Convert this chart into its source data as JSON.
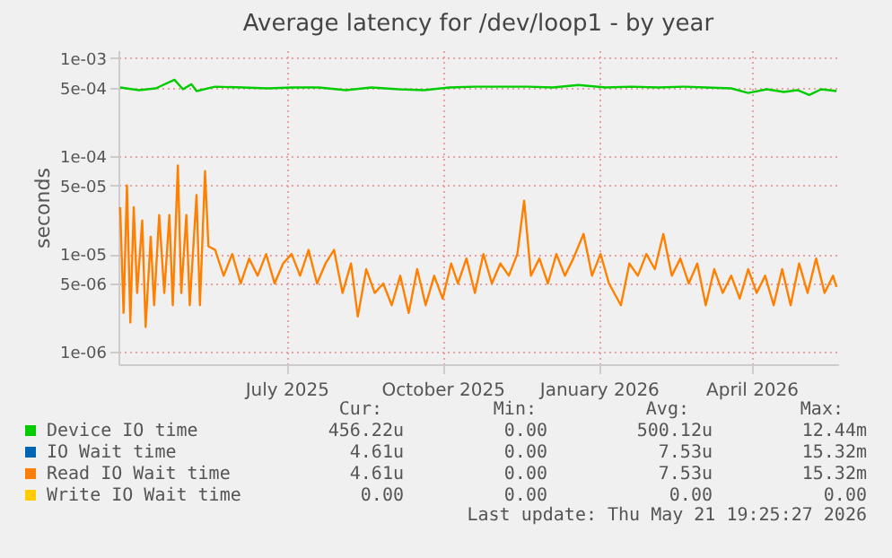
{
  "chart_data": {
    "type": "line",
    "title": "Average latency for /dev/loop1 - by year",
    "ylabel": "seconds",
    "log": "y",
    "grid": true,
    "legend": "bottom",
    "xlim": [
      "2025-03-24",
      "2026-05-22"
    ],
    "xticks": [
      {
        "value": "2025-07-01",
        "label": "July 2025"
      },
      {
        "value": "2025-10-01",
        "label": "October 2025"
      },
      {
        "value": "2026-01-01",
        "label": "January 2026"
      },
      {
        "value": "2026-04-01",
        "label": "April 2026"
      }
    ],
    "ylim": [
      7.5e-07,
      0.0012
    ],
    "yticks": [
      {
        "value": 1e-06,
        "label": "1e-06"
      },
      {
        "value": 5e-06,
        "label": "5e-06"
      },
      {
        "value": 1e-05,
        "label": "1e-05"
      },
      {
        "value": 5e-05,
        "label": "5e-05"
      },
      {
        "value": 0.0001,
        "label": "1e-04"
      },
      {
        "value": 0.0005,
        "label": "5e-04"
      },
      {
        "value": 0.001,
        "label": "1e-03"
      }
    ],
    "x": [
      "2025-03-25",
      "2025-03-27",
      "2025-03-29",
      "2025-03-31",
      "2025-04-02",
      "2025-04-04",
      "2025-04-07",
      "2025-04-09",
      "2025-04-12",
      "2025-04-14",
      "2025-04-17",
      "2025-04-20",
      "2025-04-23",
      "2025-04-25",
      "2025-04-28",
      "2025-04-30",
      "2025-05-03",
      "2025-05-05",
      "2025-05-09",
      "2025-05-11",
      "2025-05-14",
      "2025-05-16",
      "2025-05-20",
      "2025-05-25",
      "2025-05-30",
      "2025-06-04",
      "2025-06-09",
      "2025-06-14",
      "2025-06-19",
      "2025-06-24",
      "2025-06-29",
      "2025-07-04",
      "2025-07-09",
      "2025-07-14",
      "2025-07-19",
      "2025-07-24",
      "2025-07-29",
      "2025-08-03",
      "2025-08-08",
      "2025-08-12",
      "2025-08-17",
      "2025-08-22",
      "2025-08-27",
      "2025-09-01",
      "2025-09-06",
      "2025-09-11",
      "2025-09-16",
      "2025-09-21",
      "2025-09-26",
      "2025-10-01",
      "2025-10-06",
      "2025-10-10",
      "2025-10-15",
      "2025-10-20",
      "2025-10-25",
      "2025-10-30",
      "2025-11-04",
      "2025-11-09",
      "2025-11-14",
      "2025-11-18",
      "2025-11-22",
      "2025-11-27",
      "2025-12-02",
      "2025-12-07",
      "2025-12-12",
      "2025-12-17",
      "2025-12-23",
      "2025-12-28",
      "2026-01-02",
      "2026-01-07",
      "2026-01-14",
      "2026-01-19",
      "2026-01-24",
      "2026-01-29",
      "2026-02-03",
      "2026-02-08",
      "2026-02-13",
      "2026-02-18",
      "2026-02-23",
      "2026-02-28",
      "2026-03-05",
      "2026-03-10",
      "2026-03-15",
      "2026-03-20",
      "2026-03-25",
      "2026-03-30",
      "2026-04-04",
      "2026-04-09",
      "2026-04-14",
      "2026-04-19",
      "2026-04-24",
      "2026-04-29",
      "2026-05-04",
      "2026-05-09",
      "2026-05-14",
      "2026-05-19",
      "2026-05-21"
    ],
    "series": [
      {
        "name": "Device IO time",
        "color": "#00cc00",
        "x": [
          "2025-03-25",
          "2025-04-05",
          "2025-04-15",
          "2025-04-26",
          "2025-05-01",
          "2025-05-06",
          "2025-05-09",
          "2025-05-20",
          "2025-06-05",
          "2025-06-20",
          "2025-07-05",
          "2025-07-20",
          "2025-08-05",
          "2025-08-20",
          "2025-09-05",
          "2025-09-20",
          "2025-10-05",
          "2025-10-20",
          "2025-11-05",
          "2025-11-20",
          "2025-12-05",
          "2025-12-20",
          "2026-01-05",
          "2026-01-20",
          "2026-02-05",
          "2026-02-20",
          "2026-03-05",
          "2026-03-20",
          "2026-03-30",
          "2026-04-10",
          "2026-04-20",
          "2026-04-28",
          "2026-05-05",
          "2026-05-12",
          "2026-05-21"
        ],
        "values": [
          0.0005,
          0.00047,
          0.00049,
          0.0006,
          0.00048,
          0.00054,
          0.00046,
          0.00051,
          0.0005,
          0.00049,
          0.0005,
          0.0005,
          0.00047,
          0.0005,
          0.00048,
          0.00047,
          0.0005,
          0.00051,
          0.00051,
          0.00051,
          0.0005,
          0.00053,
          0.0005,
          0.00051,
          0.0005,
          0.00051,
          0.0005,
          0.00049,
          0.00044,
          0.00048,
          0.00045,
          0.00047,
          0.00042,
          0.00048,
          0.00046
        ]
      },
      {
        "name": "IO Wait time",
        "color": "#0066b3",
        "values": [
          null,
          null,
          null,
          null,
          null,
          null,
          null,
          null,
          null,
          null,
          null,
          null,
          null,
          null,
          null,
          null,
          null,
          null,
          null,
          null,
          null,
          null,
          null,
          null,
          null,
          null,
          null,
          null,
          null,
          null,
          null,
          null,
          null,
          null,
          null,
          null,
          null,
          null,
          null,
          null,
          null,
          null,
          null,
          null,
          null,
          null,
          null,
          null,
          null,
          null,
          null,
          null,
          null,
          null,
          null,
          null,
          null,
          null,
          null,
          null,
          null,
          null,
          null,
          null,
          null,
          null,
          null,
          null,
          null,
          null,
          null,
          null,
          null,
          null,
          null,
          null,
          null,
          null,
          null,
          null,
          null,
          null,
          null,
          null,
          null,
          null,
          null,
          null,
          null,
          null,
          null,
          null,
          null,
          null,
          null,
          null,
          null
        ]
      },
      {
        "name": "Read IO Wait time",
        "color": "#ff8000",
        "values": [
          3e-05,
          2.5e-06,
          5e-05,
          2e-06,
          3e-05,
          4e-06,
          2.2e-05,
          1.8e-06,
          1.5e-05,
          3e-06,
          2.5e-05,
          4e-06,
          2.5e-05,
          3e-06,
          8e-05,
          4e-06,
          2.5e-05,
          3e-06,
          4e-05,
          3e-06,
          7e-05,
          1.2e-05,
          1.1e-05,
          6e-06,
          1e-05,
          5e-06,
          9e-06,
          6e-06,
          1e-05,
          5e-06,
          8e-06,
          1e-05,
          6e-06,
          1.1e-05,
          5e-06,
          8e-06,
          1.1e-05,
          4e-06,
          8e-06,
          2.3e-06,
          7e-06,
          4e-06,
          5e-06,
          3e-06,
          6e-06,
          2.5e-06,
          7e-06,
          3e-06,
          6e-06,
          3.5e-06,
          8e-06,
          5e-06,
          9e-06,
          4e-06,
          1e-05,
          5e-06,
          8e-06,
          6e-06,
          1e-05,
          3.5e-05,
          6e-06,
          9e-06,
          5e-06,
          1e-05,
          6e-06,
          9e-06,
          1.6e-05,
          6e-06,
          1e-05,
          5e-06,
          3e-06,
          8e-06,
          6e-06,
          1e-05,
          7e-06,
          1.6e-05,
          6e-06,
          9e-06,
          5e-06,
          8e-06,
          3e-06,
          7e-06,
          4e-06,
          6e-06,
          3.5e-06,
          7e-06,
          4e-06,
          6e-06,
          3e-06,
          7e-06,
          3e-06,
          8e-06,
          4e-06,
          9e-06,
          4e-06,
          6e-06,
          4.61e-06
        ]
      },
      {
        "name": "Write IO Wait time",
        "color": "#ffcc00",
        "values": [
          null,
          null,
          null,
          null,
          null,
          null,
          null,
          null,
          null,
          null,
          null,
          null,
          null,
          null,
          null,
          null,
          null,
          null,
          null,
          null,
          null,
          null,
          null,
          null,
          null,
          null,
          null,
          null,
          null,
          null,
          null,
          null,
          null,
          null,
          null,
          null,
          null,
          null,
          null,
          null,
          null,
          null,
          null,
          null,
          null,
          null,
          null,
          null,
          null,
          null,
          null,
          null,
          null,
          null,
          null,
          null,
          null,
          null,
          null,
          null,
          null,
          null,
          null,
          null,
          null,
          null,
          null,
          null,
          null,
          null,
          null,
          null,
          null,
          null,
          null,
          null,
          null,
          null,
          null,
          null,
          null,
          null,
          null,
          null,
          null,
          null,
          null,
          null,
          null,
          null,
          null,
          null,
          null,
          null,
          null,
          null,
          null
        ]
      }
    ],
    "annotations": [
      "Cur:",
      "Min:",
      "Avg:",
      "Max:",
      "456.22u",
      "0.00",
      "500.12u",
      "12.44m",
      "4.61u",
      "0.00",
      "7.53u",
      "15.32m",
      "4.61u",
      "0.00",
      "7.53u",
      "15.32m",
      "0.00",
      "0.00",
      "0.00",
      "0.00",
      "Last update: Thu May 21 19:25:27 2026"
    ]
  }
}
